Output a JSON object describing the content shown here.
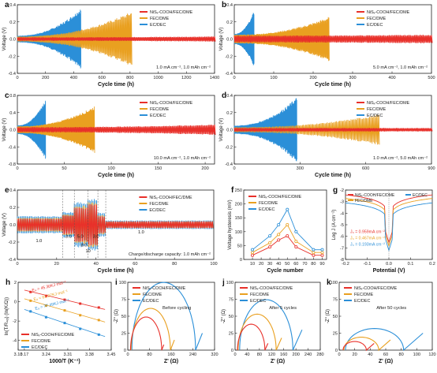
{
  "colors": {
    "red": "#e8302a",
    "orange": "#e9a020",
    "blue": "#2b8fd8"
  },
  "legend_default": [
    "NiSₓ-COOH/FEC/DME",
    "FEC/DME",
    "EC/DEC"
  ],
  "chart_data": [
    {
      "id": "a",
      "type": "line",
      "panel_label": "a",
      "xlabel": "Cycle time (h)",
      "ylabel": "Voltage (V)",
      "xlim": [
        0,
        1400
      ],
      "ylim": [
        -0.4,
        0.4
      ],
      "xticks": [
        0,
        200,
        400,
        600,
        800,
        1000,
        1200,
        1400
      ],
      "yticks": [
        -0.4,
        -0.2,
        0.0,
        0.2,
        0.4
      ],
      "annotation": "1.0 mA cm⁻², 1.0 mAh cm⁻²",
      "legend": [
        "NiSₓ-COOH/FEC/DME",
        "FEC/DME",
        "EC/DEC"
      ],
      "series": [
        {
          "name": "NiSₓ-COOH/FEC/DME",
          "color": "red",
          "x_end": 1400,
          "amp_start": 0.02,
          "amp_end": 0.03
        },
        {
          "name": "FEC/DME",
          "color": "orange",
          "x_end": 810,
          "amp_start": 0.03,
          "amp_end": 0.32
        },
        {
          "name": "EC/DEC",
          "color": "blue",
          "x_end": 450,
          "amp_start": 0.04,
          "amp_end": 0.36
        }
      ]
    },
    {
      "id": "b",
      "type": "line",
      "panel_label": "b",
      "xlabel": "Cycle time (h)",
      "ylabel": "Voltage (V)",
      "xlim": [
        0,
        500
      ],
      "ylim": [
        -0.4,
        0.4
      ],
      "xticks": [
        0,
        100,
        200,
        300,
        400,
        500
      ],
      "yticks": [
        -0.4,
        -0.2,
        0.0,
        0.2,
        0.4
      ],
      "annotation": "5.0 mA cm⁻², 1.0 mAh cm⁻²",
      "legend": [
        "NiSₓ-COOH/FEC/DME",
        "FEC/DME",
        "EC/DEC"
      ],
      "series": [
        {
          "name": "NiSₓ-COOH/FEC/DME",
          "color": "red",
          "x_end": 500,
          "amp_start": 0.04,
          "amp_end": 0.05
        },
        {
          "name": "FEC/DME",
          "color": "orange",
          "x_end": 240,
          "amp_start": 0.05,
          "amp_end": 0.26
        },
        {
          "name": "EC/DEC",
          "color": "blue",
          "x_end": 50,
          "amp_start": 0.06,
          "amp_end": 0.33
        }
      ]
    },
    {
      "id": "c",
      "type": "line",
      "panel_label": "c",
      "xlabel": "Cycle time (h)",
      "ylabel": "Voltage (V)",
      "xlim": [
        0,
        210
      ],
      "ylim": [
        -0.8,
        0.8
      ],
      "xticks": [
        0,
        50,
        100,
        150,
        200
      ],
      "yticks": [
        -0.8,
        -0.4,
        0.0,
        0.4,
        0.8
      ],
      "annotation": "10.0 mA cm⁻², 1.0 mAh cm⁻²",
      "legend": [
        "NiSₓ-COOH/FEC/DME",
        "FEC/DME",
        "EC/DEC"
      ],
      "series": [
        {
          "name": "NiSₓ-COOH/FEC/DME",
          "color": "red",
          "x_end": 210,
          "amp_start": 0.06,
          "amp_end": 0.12
        },
        {
          "name": "FEC/DME",
          "color": "orange",
          "x_end": 82,
          "amp_start": 0.08,
          "amp_end": 0.55
        },
        {
          "name": "EC/DEC",
          "color": "blue",
          "x_end": 30,
          "amp_start": 0.1,
          "amp_end": 0.7
        }
      ]
    },
    {
      "id": "d",
      "type": "line",
      "panel_label": "d",
      "xlabel": "Cycle time (h)",
      "ylabel": "Voltage (V)",
      "xlim": [
        0,
        900
      ],
      "ylim": [
        -0.4,
        0.4
      ],
      "xticks": [
        0,
        300,
        600,
        900
      ],
      "yticks": [
        -0.4,
        -0.2,
        0.0,
        0.2,
        0.4
      ],
      "annotation": "1.0 mA cm⁻², 5.0 mAh cm⁻²",
      "legend": [
        "NiSₓ-COOH/FEC/DME",
        "FEC/DME",
        "EC/DEC"
      ],
      "series": [
        {
          "name": "NiSₓ-COOH/FEC/DME",
          "color": "red",
          "x_end": 900,
          "amp_start": 0.02,
          "amp_end": 0.02
        },
        {
          "name": "FEC/DME",
          "color": "orange",
          "x_end": 660,
          "amp_start": 0.03,
          "amp_end": 0.18
        },
        {
          "name": "EC/DEC",
          "color": "blue",
          "x_end": 285,
          "amp_start": 0.05,
          "amp_end": 0.38
        }
      ]
    },
    {
      "id": "e",
      "type": "line",
      "panel_label": "e",
      "xlabel": "Cycle time (h)",
      "ylabel": "Voltage (V)",
      "xlim": [
        0,
        100
      ],
      "ylim": [
        -0.4,
        0.4
      ],
      "xticks": [
        0,
        20,
        40,
        60,
        80,
        100
      ],
      "yticks": [
        -0.4,
        -0.2,
        0.0,
        0.2,
        0.4
      ],
      "annotation": "Charge/discharge capacity: 1.0 mAh cm⁻²",
      "legend": [
        "NiSₓ-COOH/FEC/DME",
        "FEC/DME",
        "EC/DEC"
      ],
      "dividers": [
        23,
        29,
        36,
        41,
        45
      ],
      "rate_labels": [
        {
          "text": "1.0",
          "x": 11,
          "y": -0.2
        },
        {
          "text": "3.0",
          "x": 26,
          "y": -0.15
        },
        {
          "text": "5.0",
          "x": 32,
          "y": -0.15
        },
        {
          "text": "8.0",
          "x": 34,
          "y": -0.25
        },
        {
          "text": "10",
          "x": 36,
          "y": -0.32
        },
        {
          "text": "3.0",
          "x": 40,
          "y": -0.15
        },
        {
          "text": "1.0",
          "x": 63,
          "y": -0.1
        }
      ],
      "segments": [
        {
          "x0": 0,
          "x1": 23,
          "amps": [
            0.1,
            0.08,
            0.07
          ]
        },
        {
          "x0": 23,
          "x1": 29,
          "amps": [
            0.15,
            0.12,
            0.11
          ]
        },
        {
          "x0": 29,
          "x1": 36,
          "amps": [
            0.26,
            0.22,
            0.2
          ]
        },
        {
          "x0": 36,
          "x1": 41,
          "amps": [
            0.3,
            0.26,
            0.24
          ]
        },
        {
          "x0": 41,
          "x1": 45,
          "amps": [
            0.14,
            0.11,
            0.1
          ]
        },
        {
          "x0": 45,
          "x1": 100,
          "amps": [
            0.05,
            0.04,
            0.04
          ]
        }
      ],
      "series_colors": [
        "blue",
        "orange",
        "red"
      ]
    },
    {
      "id": "f",
      "type": "line",
      "panel_label": "f",
      "xlabel": "Cycle number",
      "ylabel": "Voltage hysteresis (mV)",
      "xlim": [
        0,
        95
      ],
      "ylim": [
        0,
        250
      ],
      "xticks": [
        10,
        20,
        30,
        40,
        50,
        60,
        70,
        80,
        90
      ],
      "yticks": [
        0,
        50,
        100,
        150,
        200,
        250
      ],
      "legend": [
        "NiSₓ-COOH/FEC/DME",
        "FEC/DME",
        "EC/DEC"
      ],
      "x": [
        10,
        30,
        40,
        50,
        60,
        80,
        90
      ],
      "series": [
        {
          "name": "NiSₓ-COOH/FEC/DME",
          "color": "red",
          "values": [
            15,
            45,
            70,
            85,
            45,
            15,
            15
          ]
        },
        {
          "name": "FEC/DME",
          "color": "orange",
          "values": [
            25,
            60,
            90,
            125,
            65,
            25,
            25
          ]
        },
        {
          "name": "EC/DEC",
          "color": "blue",
          "values": [
            35,
            85,
            125,
            180,
            100,
            35,
            35
          ]
        }
      ]
    },
    {
      "id": "g",
      "type": "line",
      "panel_label": "g",
      "xlabel": "Potential (V)",
      "ylabel": "Log J (A cm⁻²)",
      "xlim": [
        -0.2,
        0.2
      ],
      "ylim": [
        -8,
        -2
      ],
      "xticks": [
        -0.2,
        -0.1,
        0.0,
        0.1,
        0.2
      ],
      "yticks": [
        -8,
        -7,
        -6,
        -5,
        -4,
        -3,
        -2
      ],
      "legend": [
        "NiSₓ-COOH/FEC/DME",
        "FEC/DME",
        "EC/DEC"
      ],
      "annotations": [
        {
          "text": "J₀ = 0.959mA cm⁻²",
          "color": "red"
        },
        {
          "text": "J₀ = 0.467mA cm⁻²",
          "color": "orange"
        },
        {
          "text": "J₀ = 0.193mA cm⁻²",
          "color": "blue"
        }
      ],
      "series": [
        {
          "name": "NiSₓ-COOH/FEC/DME",
          "color": "red",
          "j0_log": -3.02
        },
        {
          "name": "FEC/DME",
          "color": "orange",
          "j0_log": -3.33
        },
        {
          "name": "EC/DEC",
          "color": "blue",
          "j0_log": -3.71
        }
      ]
    },
    {
      "id": "h",
      "type": "scatter",
      "panel_label": "h",
      "xlabel": "1000/T (K⁻¹)",
      "ylabel": "ln(T/Rₛₑᵢ) (ln(K/Ω))",
      "xlim": [
        3.15,
        3.45
      ],
      "ylim": [
        -5,
        2
      ],
      "xticks": [
        3.1,
        3.17,
        3.24,
        3.31,
        3.38,
        3.45
      ],
      "yticks": [
        -4,
        -2,
        0,
        2
      ],
      "legend": [
        "NiSₓ-COOH/FEC/DME",
        "FEC/DME",
        "EC/DEC"
      ],
      "x": [
        3.19,
        3.24,
        3.3,
        3.35,
        3.41
      ],
      "series": [
        {
          "name": "NiSₓ-COOH/FEC/DME",
          "color": "red",
          "values": [
            1.0,
            0.6,
            0.2,
            -0.2,
            -0.6
          ],
          "ea_label": "Eₐ = 45.30KJ mol⁻¹"
        },
        {
          "name": "FEC/DME",
          "color": "orange",
          "values": [
            0.1,
            -0.4,
            -0.9,
            -1.4,
            -1.9
          ],
          "ea_label": "Eₐ = 61.07KJ mol⁻¹"
        },
        {
          "name": "EC/DEC",
          "color": "blue",
          "values": [
            -1.0,
            -1.6,
            -2.2,
            -2.8,
            -3.4
          ],
          "ea_label": "Eₐ = 77.49KJ mol⁻¹"
        }
      ]
    },
    {
      "id": "i",
      "type": "line",
      "panel_label": "i",
      "xlabel": "Z' (Ω)",
      "ylabel": "-Z'' (Ω)",
      "xlim": [
        0,
        320
      ],
      "ylim": [
        0,
        100
      ],
      "xticks": [
        0,
        80,
        160,
        240,
        320
      ],
      "yticks": [
        0,
        25,
        50,
        75,
        100
      ],
      "annotation": "Before cycling",
      "legend": [
        "NiSₓ-COOH/FEC/DME",
        "FEC/DME",
        "EC/DEC"
      ],
      "series": [
        {
          "name": "NiSₓ-COOH/FEC/DME",
          "color": "red",
          "start": 10,
          "diameter": 115,
          "tail": 8
        },
        {
          "name": "FEC/DME",
          "color": "orange",
          "start": 12,
          "diameter": 145,
          "tail": 15
        },
        {
          "name": "EC/DEC",
          "color": "blue",
          "start": 15,
          "diameter": 235,
          "tail": 25
        }
      ]
    },
    {
      "id": "j",
      "type": "line",
      "panel_label": "j",
      "xlabel": "Z' (Ω)",
      "ylabel": "-Z'' (Ω)",
      "xlim": [
        0,
        280
      ],
      "ylim": [
        0,
        100
      ],
      "xticks": [
        0,
        40,
        80,
        120,
        160,
        200,
        240,
        280
      ],
      "yticks": [
        0,
        25,
        50,
        75,
        100
      ],
      "annotation": "After 5 cycles",
      "legend": [
        "NiSₓ-COOH/FEC/DME",
        "FEC/DME",
        "EC/DEC"
      ],
      "series": [
        {
          "name": "NiSₓ-COOH/FEC/DME",
          "color": "red",
          "start": 8,
          "diameter": 90,
          "tail": 10
        },
        {
          "name": "FEC/DME",
          "color": "orange",
          "start": 10,
          "diameter": 125,
          "tail": 18
        },
        {
          "name": "EC/DEC",
          "color": "blue",
          "start": 15,
          "diameter": 175,
          "tail": 30
        }
      ]
    },
    {
      "id": "k",
      "type": "line",
      "panel_label": "k",
      "xlabel": "Z' (Ω)",
      "ylabel": "-Z'' (Ω)",
      "xlim": [
        0,
        120
      ],
      "ylim": [
        0,
        100
      ],
      "xticks": [
        0,
        20,
        40,
        60,
        80,
        100,
        120
      ],
      "yticks": [
        0,
        25,
        50,
        75,
        100
      ],
      "annotation": "After 50 cycles",
      "legend": [
        "NiSₓ-COOH/FEC/DME",
        "FEC/DME",
        "EC/DEC"
      ],
      "series": [
        {
          "name": "NiSₓ-COOH/FEC/DME",
          "color": "red",
          "start": 5,
          "diameter": 30,
          "tail": 10
        },
        {
          "name": "FEC/DME",
          "color": "orange",
          "start": 6,
          "diameter": 45,
          "tail": 15
        },
        {
          "name": "EC/DEC",
          "color": "blue",
          "start": 8,
          "diameter": 75,
          "tail": 25
        }
      ]
    }
  ]
}
